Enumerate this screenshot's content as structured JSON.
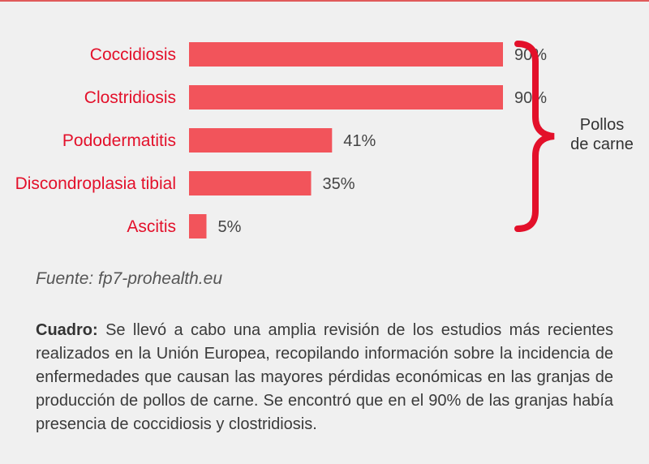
{
  "colors": {
    "bar": "#f2545b",
    "category_label": "#e3102a",
    "brace": "#e3102a",
    "background": "#f0f0f0"
  },
  "chart_data": {
    "type": "bar",
    "orientation": "horizontal",
    "categories": [
      "Coccidiosis",
      "Clostridiosis",
      "Pododermatitis",
      "Discondroplasia tibial",
      "Ascitis"
    ],
    "values": [
      90,
      90,
      41,
      35,
      5
    ],
    "value_labels": [
      "90%",
      "90%",
      "41%",
      "35%",
      "5%"
    ],
    "unit": "%",
    "xlim": [
      0,
      100
    ],
    "grid": false,
    "group_annotation": {
      "lines": [
        "Pollos",
        "de carne"
      ],
      "bracket": "right-curly-brace"
    }
  },
  "source": "Fuente: fp7-prohealth.eu",
  "caption": {
    "label": "Cuadro:",
    "text": " Se llevó a cabo una amplia revisión de los estudios más recientes realizados en la Unión Europea, recopilando información sobre la incidencia de enfermedades que causan las mayores pérdidas económicas en las granjas de producción de pollos de carne. Se encontró que en el 90% de las granjas había presencia de coccidiosis y clostridiosis."
  }
}
